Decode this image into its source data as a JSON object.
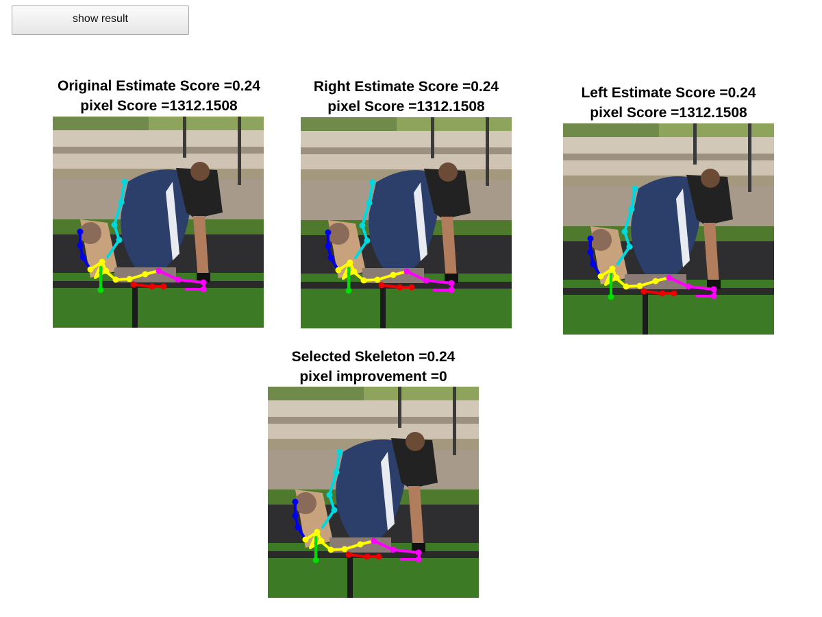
{
  "toolbar": {
    "show_result_label": "show result"
  },
  "panels": [
    {
      "id": "original",
      "title_line1": "Original Estimate Score =0.24",
      "title_line2": "pixel Score =1312.1508"
    },
    {
      "id": "right",
      "title_line1": "Right Estimate Score =0.24",
      "title_line2": "pixel Score =1312.1508"
    },
    {
      "id": "left",
      "title_line1": "Left Estimate Score =0.24",
      "title_line2": "pixel Score =1312.1508"
    },
    {
      "id": "selected",
      "title_line1": "Selected Skeleton =0.24",
      "title_line2": "pixel improvement =0"
    }
  ],
  "skeleton_colors": {
    "torso": "#00d8e0",
    "head_arm": "#0000ee",
    "left_arm": "#ffff00",
    "right_arm": "#ff00ff",
    "left_leg": "#00dd00",
    "right_leg": "#ee0000"
  }
}
